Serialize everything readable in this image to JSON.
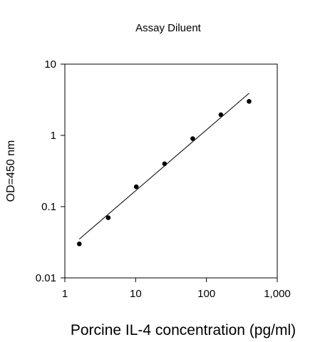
{
  "chart_data": {
    "type": "scatter",
    "title": "Assay Diluent",
    "xlabel": "Porcine IL-4 concentration (pg/ml)",
    "ylabel": "OD=450 nm",
    "x_scale": "log",
    "y_scale": "log",
    "xlim": [
      1,
      1000
    ],
    "ylim": [
      0.01,
      10
    ],
    "x_ticks": [
      1,
      10,
      100,
      1000
    ],
    "x_tick_labels": [
      "1",
      "10",
      "100",
      "1,000"
    ],
    "y_ticks": [
      0.01,
      0.1,
      1,
      10
    ],
    "y_tick_labels": [
      "0.01",
      "0.1",
      "1",
      "10"
    ],
    "grid": false,
    "series": [
      {
        "x": [
          1.6,
          4.1,
          10.2,
          25.6,
          64,
          160,
          400
        ],
        "y": [
          0.03,
          0.07,
          0.19,
          0.4,
          0.9,
          1.95,
          3.0
        ]
      }
    ],
    "fit_line": {
      "x": [
        1.6,
        400
      ],
      "y": [
        0.035,
        3.9
      ]
    },
    "colors": {
      "marker": "#000000",
      "line": "#000000",
      "axis": "#000000"
    }
  }
}
